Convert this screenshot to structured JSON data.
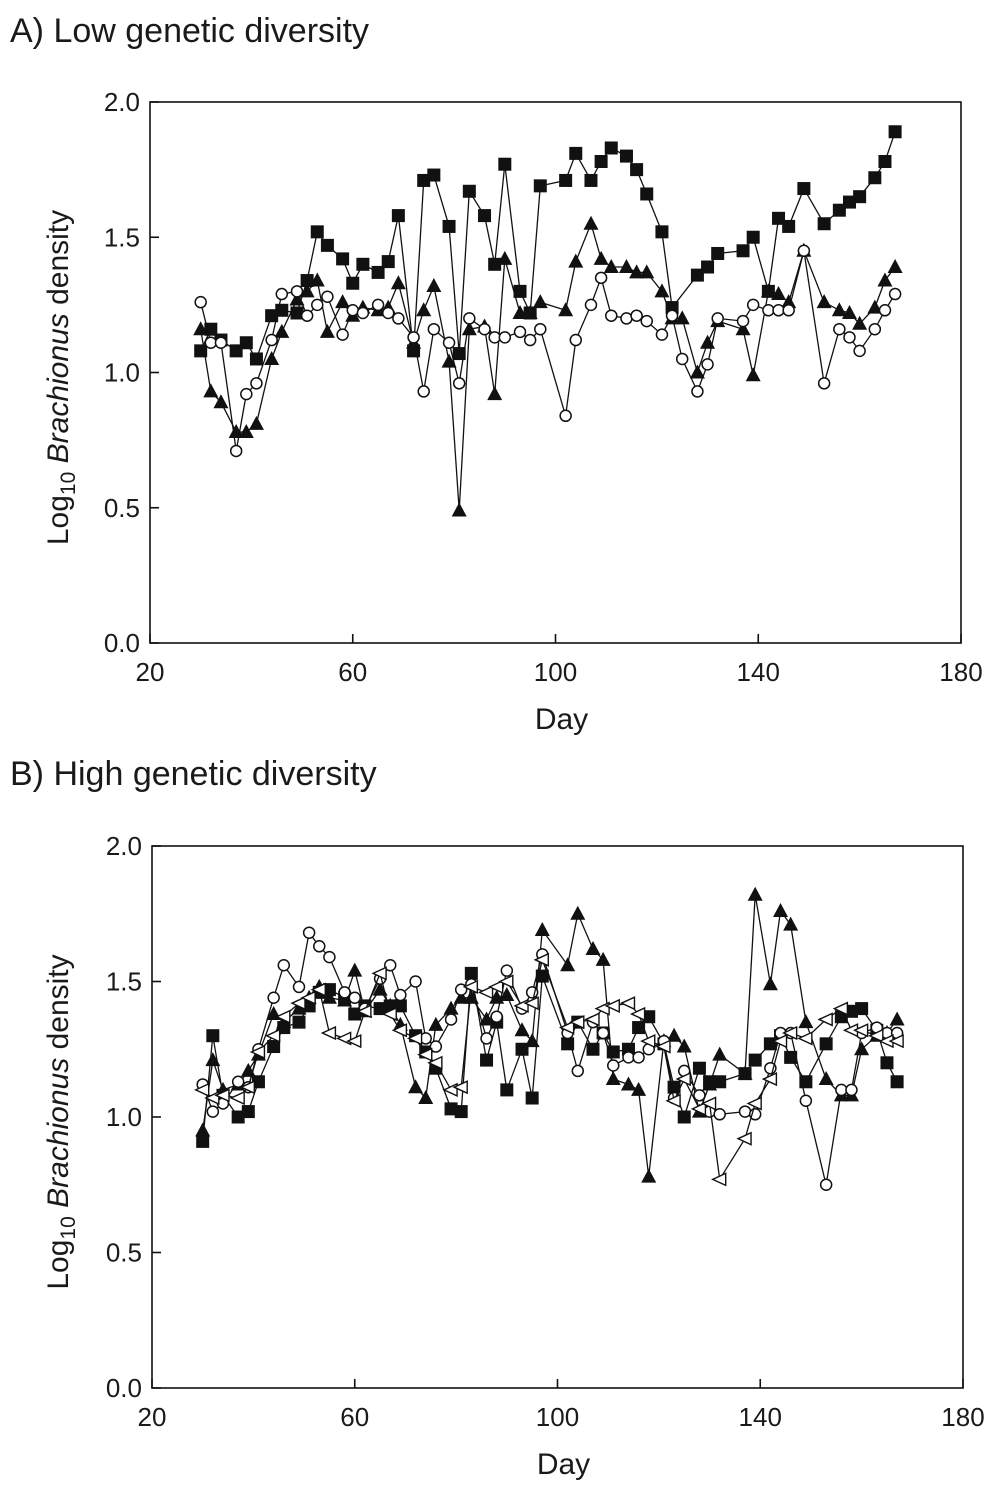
{
  "chart_data": [
    {
      "type": "line",
      "title": "A) Low genetic diversity",
      "xlabel": "Day",
      "ylabel": {
        "prefix": "Log",
        "subscript": "10",
        "italic": "Brachionus",
        "suffix": " density"
      },
      "xlim": [
        20,
        180
      ],
      "ylim": [
        0.0,
        2.0
      ],
      "xticks": [
        20,
        60,
        100,
        140,
        180
      ],
      "yticks": [
        "0.0",
        "0.5",
        "1.0",
        "1.5",
        "2.0"
      ],
      "series": [
        {
          "name": "squares",
          "marker": "square-filled",
          "x": [
            30,
            32,
            34,
            37,
            39,
            41,
            44,
            46,
            49,
            51,
            53,
            55,
            58,
            60,
            62,
            65,
            67,
            69,
            72,
            74,
            76,
            79,
            81,
            83,
            86,
            88,
            90,
            93,
            95,
            97,
            102,
            104,
            107,
            109,
            111,
            114,
            116,
            118,
            121,
            123,
            128,
            130,
            132,
            137,
            139,
            142,
            144,
            146,
            149,
            153,
            156,
            158,
            160,
            163,
            165,
            167
          ],
          "y": [
            1.08,
            1.16,
            1.12,
            1.08,
            1.11,
            1.05,
            1.21,
            1.23,
            1.22,
            1.34,
            1.52,
            1.47,
            1.42,
            1.33,
            1.4,
            1.37,
            1.41,
            1.58,
            1.08,
            1.71,
            1.73,
            1.54,
            1.07,
            1.67,
            1.58,
            1.4,
            1.77,
            1.3,
            1.22,
            1.69,
            1.71,
            1.81,
            1.71,
            1.78,
            1.83,
            1.8,
            1.75,
            1.66,
            1.52,
            1.24,
            1.36,
            1.39,
            1.44,
            1.45,
            1.5,
            1.3,
            1.57,
            1.54,
            1.68,
            1.55,
            1.6,
            1.63,
            1.65,
            1.72,
            1.78,
            1.89
          ]
        },
        {
          "name": "triangles",
          "marker": "triangle-filled",
          "x": [
            30,
            32,
            34,
            37,
            39,
            41,
            44,
            46,
            49,
            51,
            53,
            55,
            58,
            60,
            62,
            65,
            67,
            69,
            72,
            74,
            76,
            79,
            81,
            83,
            86,
            88,
            90,
            93,
            95,
            97,
            102,
            104,
            107,
            109,
            111,
            114,
            116,
            118,
            121,
            123,
            125,
            128,
            130,
            132,
            137,
            139,
            142,
            144,
            146,
            149,
            153,
            156,
            158,
            160,
            163,
            165,
            167
          ],
          "y": [
            1.16,
            0.93,
            0.89,
            0.78,
            0.78,
            0.81,
            1.05,
            1.15,
            1.27,
            1.3,
            1.34,
            1.15,
            1.26,
            1.21,
            1.24,
            1.23,
            1.24,
            1.33,
            1.11,
            1.23,
            1.32,
            1.04,
            0.49,
            1.16,
            1.17,
            0.92,
            1.42,
            1.22,
            1.22,
            1.26,
            1.23,
            1.41,
            1.55,
            1.42,
            1.39,
            1.39,
            1.37,
            1.37,
            1.3,
            1.2,
            1.2,
            1.0,
            1.11,
            1.19,
            1.16,
            0.99,
            1.3,
            1.29,
            1.26,
            1.45,
            1.26,
            1.23,
            1.22,
            1.18,
            1.24,
            1.34,
            1.39
          ]
        },
        {
          "name": "circles",
          "marker": "circle-open",
          "x": [
            30,
            32,
            34,
            37,
            39,
            41,
            44,
            46,
            49,
            51,
            53,
            55,
            58,
            60,
            62,
            65,
            67,
            69,
            72,
            74,
            76,
            79,
            81,
            83,
            86,
            88,
            90,
            93,
            95,
            97,
            102,
            104,
            107,
            109,
            111,
            114,
            116,
            118,
            121,
            123,
            125,
            128,
            130,
            132,
            137,
            139,
            142,
            144,
            146,
            149,
            153,
            156,
            158,
            160,
            163,
            165,
            167
          ],
          "y": [
            1.26,
            1.11,
            1.11,
            0.71,
            0.92,
            0.96,
            1.12,
            1.29,
            1.3,
            1.21,
            1.25,
            1.28,
            1.14,
            1.23,
            1.22,
            1.25,
            1.22,
            1.2,
            1.13,
            0.93,
            1.16,
            1.11,
            0.96,
            1.2,
            1.16,
            1.13,
            1.13,
            1.15,
            1.12,
            1.16,
            0.84,
            1.12,
            1.25,
            1.35,
            1.21,
            1.2,
            1.21,
            1.19,
            1.14,
            1.21,
            1.05,
            0.93,
            1.03,
            1.2,
            1.19,
            1.25,
            1.23,
            1.23,
            1.23,
            1.45,
            0.96,
            1.16,
            1.13,
            1.08,
            1.16,
            1.23,
            1.29
          ]
        }
      ]
    },
    {
      "type": "line",
      "title": "B) High genetic diversity",
      "xlabel": "Day",
      "ylabel": {
        "prefix": "Log",
        "subscript": "10",
        "italic": "Brachionus",
        "suffix": " density"
      },
      "xlim": [
        20,
        180
      ],
      "ylim": [
        0.0,
        2.0
      ],
      "xticks": [
        20,
        60,
        100,
        140,
        180
      ],
      "yticks": [
        "0.0",
        "0.5",
        "1.0",
        "1.5",
        "2.0"
      ],
      "series": [
        {
          "name": "squares",
          "marker": "square-filled",
          "x": [
            30,
            32,
            34,
            37,
            39,
            41,
            44,
            46,
            49,
            51,
            53,
            55,
            58,
            60,
            62,
            65,
            67,
            69,
            72,
            74,
            76,
            79,
            81,
            83,
            86,
            88,
            90,
            93,
            95,
            97,
            102,
            104,
            107,
            109,
            111,
            114,
            116,
            118,
            121,
            123,
            125,
            128,
            130,
            132,
            137,
            139,
            142,
            144,
            146,
            149,
            153,
            156,
            158,
            160,
            163,
            165,
            167
          ],
          "y": [
            0.91,
            1.3,
            1.08,
            1.0,
            1.02,
            1.13,
            1.26,
            1.33,
            1.35,
            1.41,
            1.46,
            1.47,
            1.44,
            1.38,
            1.41,
            1.4,
            1.41,
            1.41,
            1.3,
            1.24,
            1.18,
            1.03,
            1.02,
            1.53,
            1.21,
            1.35,
            1.1,
            1.25,
            1.07,
            1.52,
            1.27,
            1.35,
            1.25,
            1.31,
            1.24,
            1.25,
            1.33,
            1.37,
            1.27,
            1.11,
            1.0,
            1.18,
            1.13,
            1.13,
            1.16,
            1.21,
            1.27,
            1.3,
            1.22,
            1.13,
            1.27,
            1.37,
            1.39,
            1.4,
            1.32,
            1.2,
            1.13
          ]
        },
        {
          "name": "triangles",
          "marker": "triangle-filled",
          "x": [
            30,
            32,
            34,
            37,
            39,
            41,
            44,
            46,
            49,
            51,
            53,
            55,
            58,
            60,
            62,
            65,
            67,
            69,
            72,
            74,
            76,
            79,
            81,
            83,
            86,
            88,
            90,
            93,
            95,
            97,
            102,
            104,
            107,
            109,
            111,
            114,
            116,
            118,
            121,
            123,
            125,
            128,
            130,
            132,
            137,
            139,
            142,
            144,
            146,
            149,
            153,
            156,
            158,
            160,
            163,
            165,
            167
          ],
          "y": [
            0.95,
            1.21,
            1.1,
            1.12,
            1.17,
            1.23,
            1.38,
            1.35,
            1.4,
            1.44,
            1.48,
            1.44,
            1.43,
            1.54,
            1.39,
            1.47,
            1.41,
            1.34,
            1.11,
            1.07,
            1.34,
            1.4,
            1.44,
            1.44,
            1.36,
            1.44,
            1.45,
            1.32,
            1.28,
            1.69,
            1.56,
            1.75,
            1.62,
            1.58,
            1.14,
            1.12,
            1.1,
            0.78,
            1.28,
            1.3,
            1.26,
            1.02,
            1.12,
            1.23,
            1.16,
            1.82,
            1.49,
            1.76,
            1.71,
            1.35,
            1.14,
            1.08,
            1.08,
            1.25,
            1.3,
            1.31,
            1.36
          ]
        },
        {
          "name": "circles",
          "marker": "circle-open",
          "x": [
            30,
            32,
            34,
            37,
            39,
            41,
            44,
            46,
            49,
            51,
            53,
            55,
            58,
            60,
            62,
            65,
            67,
            69,
            72,
            74,
            76,
            79,
            81,
            83,
            86,
            88,
            90,
            93,
            95,
            97,
            102,
            104,
            107,
            109,
            111,
            114,
            116,
            118,
            121,
            123,
            125,
            128,
            130,
            132,
            137,
            139,
            142,
            144,
            146,
            149,
            153,
            156,
            158,
            160,
            163,
            165,
            167
          ],
          "y": [
            1.12,
            1.02,
            1.05,
            1.13,
            1.11,
            1.25,
            1.44,
            1.56,
            1.48,
            1.68,
            1.63,
            1.59,
            1.46,
            1.44,
            1.4,
            1.51,
            1.56,
            1.45,
            1.5,
            1.29,
            1.26,
            1.36,
            1.47,
            1.49,
            1.29,
            1.37,
            1.54,
            1.4,
            1.46,
            1.6,
            1.31,
            1.17,
            1.35,
            1.31,
            1.19,
            1.22,
            1.22,
            1.25,
            1.28,
            1.07,
            1.17,
            1.08,
            1.02,
            1.01,
            1.02,
            1.01,
            1.18,
            1.31,
            1.31,
            1.06,
            0.75,
            1.1,
            1.1,
            1.31,
            1.33,
            1.31,
            1.31
          ]
        },
        {
          "name": "triangles-left-open",
          "marker": "triangle-left-open",
          "x": [
            30,
            32,
            34,
            37,
            39,
            41,
            44,
            46,
            49,
            51,
            53,
            55,
            58,
            60,
            62,
            65,
            67,
            69,
            72,
            74,
            76,
            79,
            81,
            83,
            86,
            88,
            90,
            93,
            95,
            97,
            102,
            104,
            107,
            109,
            111,
            114,
            116,
            118,
            121,
            123,
            125,
            128,
            130,
            132,
            137,
            139,
            142,
            144,
            146,
            149,
            153,
            156,
            158,
            160,
            163,
            165,
            167
          ],
          "y": [
            1.1,
            1.07,
            1.08,
            1.07,
            1.11,
            1.24,
            1.3,
            1.37,
            1.42,
            1.44,
            1.47,
            1.31,
            1.29,
            1.28,
            1.39,
            1.53,
            1.38,
            1.32,
            1.29,
            1.23,
            1.2,
            1.1,
            1.11,
            1.48,
            1.46,
            1.48,
            1.5,
            1.41,
            1.42,
            1.58,
            1.33,
            1.35,
            1.36,
            1.4,
            1.41,
            1.42,
            1.38,
            1.28,
            1.26,
            1.06,
            1.14,
            1.03,
            1.05,
            0.77,
            0.92,
            1.05,
            1.14,
            1.28,
            1.31,
            1.29,
            1.36,
            1.4,
            1.32,
            1.32,
            1.3,
            1.28,
            1.28
          ]
        }
      ]
    }
  ]
}
